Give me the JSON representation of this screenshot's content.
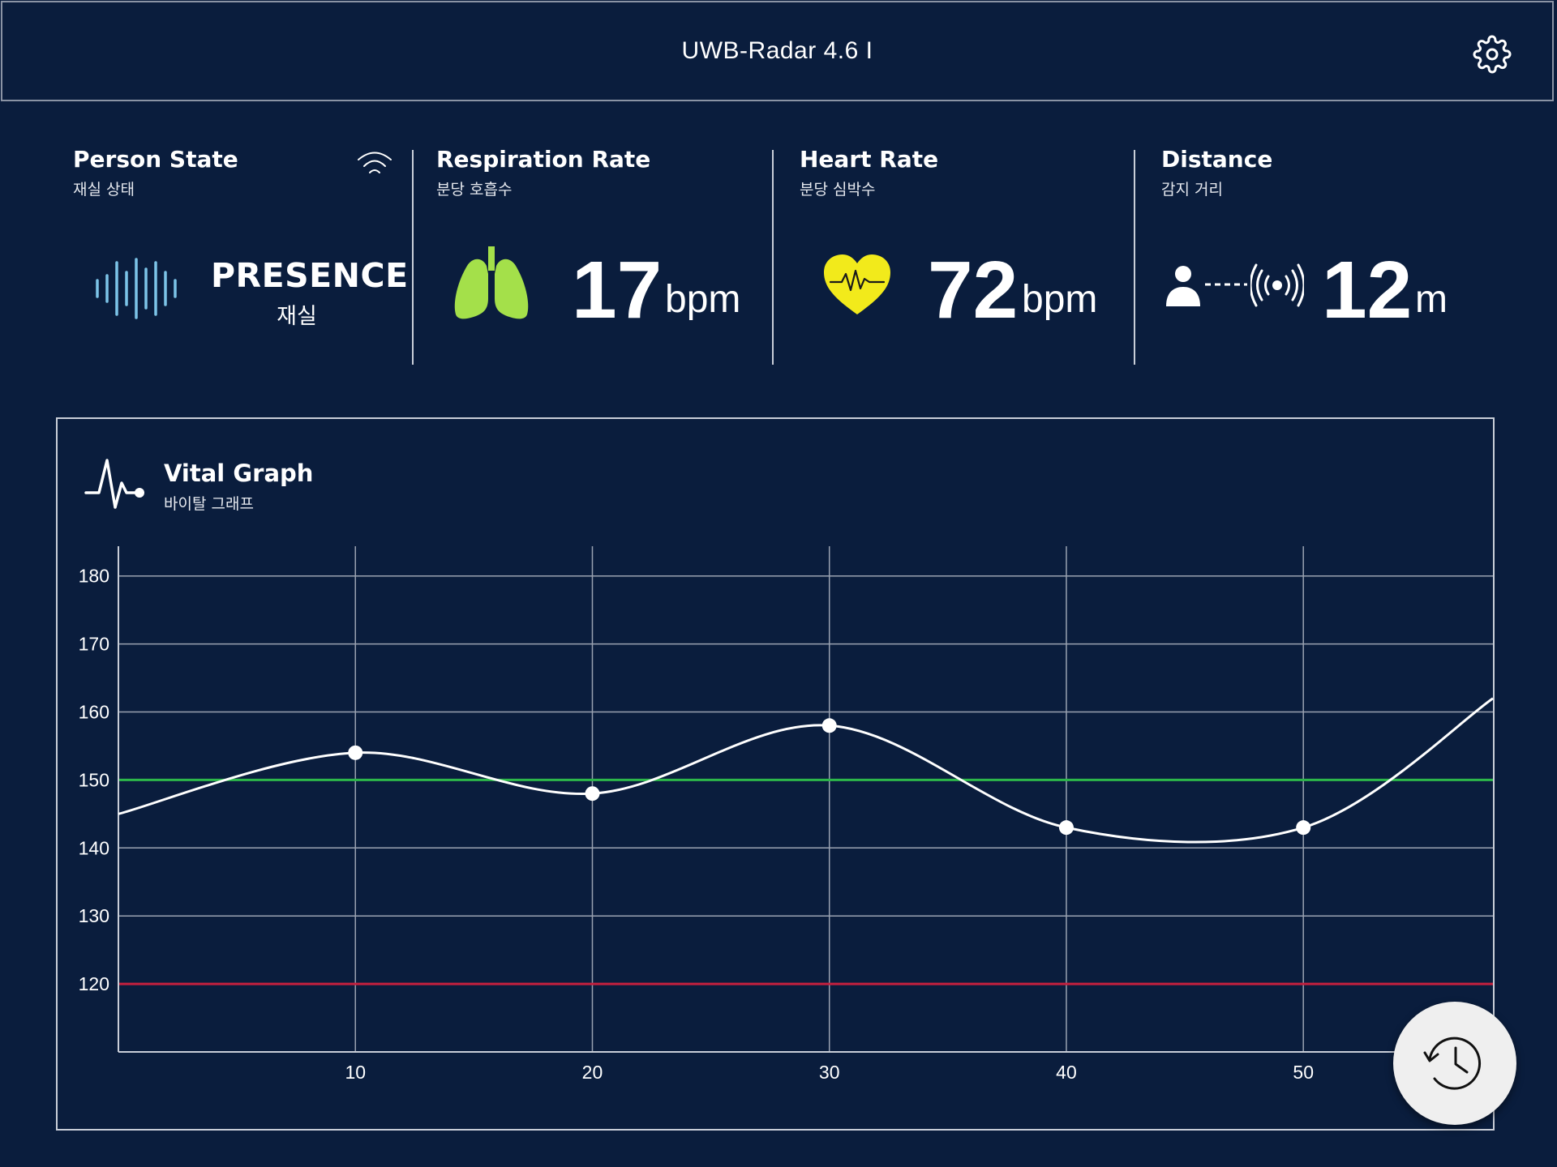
{
  "app": {
    "title": "UWB-Radar 4.6 I"
  },
  "icons": {
    "settings": "gear-icon",
    "wifi": "wifi-icon",
    "waveform": "waveform-icon",
    "lungs": "lungs-icon",
    "heart": "heart-icon",
    "person": "person-icon",
    "radar": "radar-signal-icon",
    "pulse": "pulse-icon",
    "history": "history-icon"
  },
  "colors": {
    "background": "#0a1d3d",
    "lungs": "#a4e04a",
    "heart": "#f2ea1b",
    "waveform": "#7cc4e8",
    "upper_threshold": "#2db84a",
    "lower_threshold": "#c4203e"
  },
  "cards": {
    "person_state": {
      "title": "Person State",
      "subtitle": "재실 상태",
      "value": "PRESENCE",
      "value_sub": "재실"
    },
    "respiration": {
      "title": "Respiration Rate",
      "subtitle": "분당 호흡수",
      "value": "17",
      "unit": "bpm"
    },
    "heart_rate": {
      "title": "Heart Rate",
      "subtitle": "분당 심박수",
      "value": "72",
      "unit": "bpm"
    },
    "distance": {
      "title": "Distance",
      "subtitle": "감지 거리",
      "value": "12",
      "unit": "m"
    }
  },
  "graph": {
    "title": "Vital Graph",
    "subtitle": "바이탈 그래프"
  },
  "chart_data": {
    "type": "line",
    "title": "Vital Graph",
    "x_ticks": [
      10,
      20,
      30,
      40,
      50
    ],
    "y_ticks": [
      120,
      130,
      140,
      150,
      160,
      170,
      180
    ],
    "xlim": [
      0,
      58
    ],
    "ylim": [
      110,
      187
    ],
    "grid": true,
    "points": [
      {
        "x": 10,
        "y": 154
      },
      {
        "x": 20,
        "y": 148
      },
      {
        "x": 30,
        "y": 158
      },
      {
        "x": 40,
        "y": 143
      },
      {
        "x": 50,
        "y": 143
      }
    ],
    "line_start": {
      "x": 0,
      "y": 145
    },
    "line_end": {
      "x": 58,
      "y": 162
    },
    "thresholds": [
      {
        "y": 150,
        "color": "#2db84a"
      },
      {
        "y": 120,
        "color": "#c4203e"
      }
    ]
  }
}
